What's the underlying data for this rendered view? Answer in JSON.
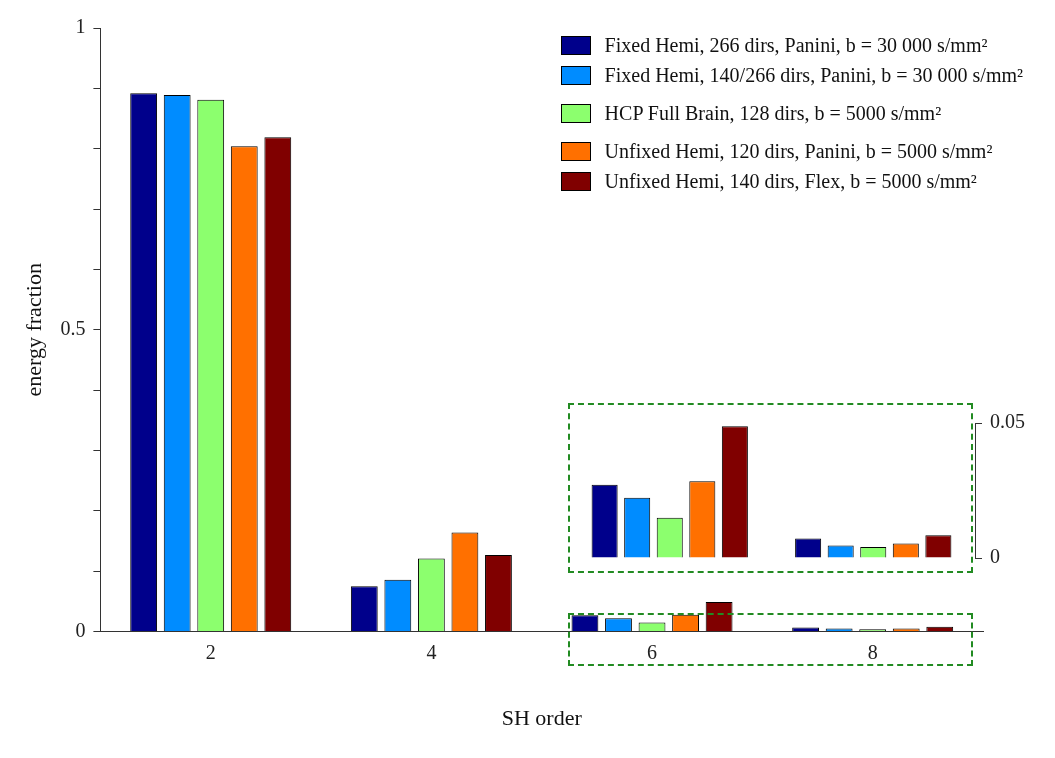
{
  "chart_data": [
    {
      "type": "bar",
      "categories": [
        "2",
        "4",
        "6",
        "8"
      ],
      "xlabel": "SH order",
      "ylabel": "energy fraction",
      "ylim": [
        0,
        1
      ],
      "yticks": [
        0,
        {
          "value": 0.1,
          "label": null
        },
        {
          "value": 0.2,
          "label": null
        },
        {
          "value": 0.3,
          "label": null
        },
        {
          "value": 0.4,
          "label": null
        },
        0.5,
        {
          "value": 0.6,
          "label": null
        },
        {
          "value": 0.7,
          "label": null
        },
        {
          "value": 0.8,
          "label": null
        },
        {
          "value": 0.9,
          "label": null
        },
        1
      ],
      "legend": "top right",
      "series": [
        {
          "name": "Fixed Hemi, 266 dirs, Panini, b = 30 000 s/mm²",
          "color": "#00008b",
          "values": [
            0.892,
            0.075,
            0.027,
            0.007
          ]
        },
        {
          "name": "Fixed Hemi, 140/266 dirs, Panini, b = 30 000 s/mm²",
          "color": "#008cff",
          "values": [
            0.889,
            0.086,
            0.022,
            0.005
          ]
        },
        {
          "name": "HCP Full Brain, 128 dirs, b = 5000 s/mm²",
          "color": "#8cff6e",
          "values": [
            0.881,
            0.121,
            0.015,
            0.004
          ]
        },
        {
          "name": "Unfixed Hemi, 120 dirs, Panini, b = 5000 s/mm²",
          "color": "#ff7000",
          "values": [
            0.804,
            0.164,
            0.028,
            0.005
          ]
        },
        {
          "name": "Unfixed Hemi, 140 dirs, Flex, b = 5000 s/mm²",
          "color": "#800000",
          "values": [
            0.819,
            0.127,
            0.049,
            0.008
          ]
        }
      ]
    },
    {
      "type": "bar",
      "categories": [
        "6",
        "8"
      ],
      "ylim": [
        0,
        0.05
      ],
      "yticks": [
        0,
        0.05
      ],
      "tick_labels": "y",
      "series": [
        {
          "color": "#00008b",
          "values": [
            0.0271,
            0.0072
          ]
        },
        {
          "color": "#008cff",
          "values": [
            0.0223,
            0.0046
          ]
        },
        {
          "color": "#8cff6e",
          "values": [
            0.0149,
            0.0041
          ]
        },
        {
          "color": "#ff7000",
          "values": [
            0.0284,
            0.0054
          ]
        },
        {
          "color": "#800000",
          "values": [
            0.0488,
            0.0084
          ]
        }
      ]
    }
  ]
}
